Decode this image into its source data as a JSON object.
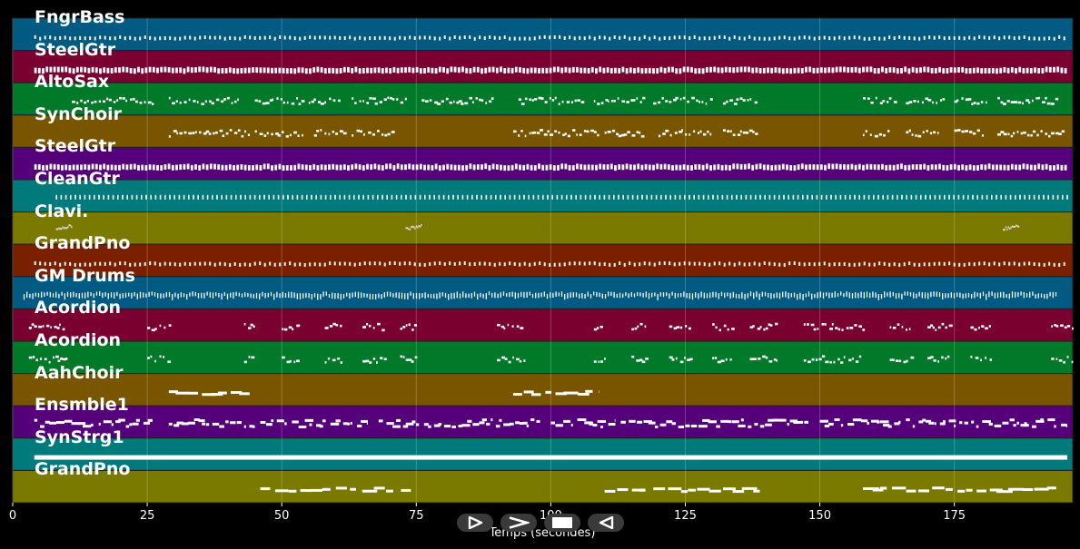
{
  "player": {
    "xlabel": "Temps (secondes)",
    "duration": 197,
    "xlim": [
      0,
      197
    ],
    "background": "#000000",
    "grid": true,
    "ticks": [
      0,
      25,
      50,
      75,
      100,
      125,
      150,
      175
    ],
    "tick_labels": [
      "0",
      "25",
      "50",
      "75",
      "100",
      "125",
      "150",
      "175"
    ]
  },
  "tracks": [
    {
      "name": "FngrBass",
      "color": "#005a82",
      "pattern": "dense-small",
      "segments": [
        [
          4,
          196
        ]
      ]
    },
    {
      "name": "SteelGtr",
      "color": "#7a0030",
      "pattern": "dense-bold",
      "segments": [
        [
          4,
          196
        ]
      ]
    },
    {
      "name": "AltoSax",
      "color": "#007a28",
      "pattern": "phrases",
      "segments": [
        [
          11,
          26
        ],
        [
          29,
          42
        ],
        [
          45,
          54
        ],
        [
          55,
          61
        ],
        [
          63,
          73
        ],
        [
          76,
          89
        ],
        [
          94,
          106
        ],
        [
          108,
          117
        ],
        [
          119,
          130
        ],
        [
          132,
          138
        ],
        [
          158,
          164
        ],
        [
          166,
          173
        ],
        [
          175,
          181
        ],
        [
          183,
          194
        ]
      ]
    },
    {
      "name": "SynChoir",
      "color": "#7a5500",
      "pattern": "phrases",
      "segments": [
        [
          29,
          44
        ],
        [
          45,
          54
        ],
        [
          56,
          62
        ],
        [
          63,
          71
        ],
        [
          93,
          109
        ],
        [
          110,
          117
        ],
        [
          120,
          130
        ],
        [
          132,
          138
        ],
        [
          158,
          163
        ],
        [
          166,
          172
        ],
        [
          175,
          181
        ],
        [
          183,
          195
        ]
      ]
    },
    {
      "name": "SteelGtr",
      "color": "#55007a",
      "pattern": "dense-bold",
      "segments": [
        [
          4,
          196
        ]
      ]
    },
    {
      "name": "CleanGtr",
      "color": "#007a7a",
      "pattern": "sparse-ticks",
      "segments": [
        [
          8,
          196
        ]
      ]
    },
    {
      "name": "Clavi.",
      "color": "#7a7a00",
      "pattern": "fills",
      "segments": [
        [
          8,
          11
        ],
        [
          73,
          76
        ],
        [
          184,
          187
        ]
      ]
    },
    {
      "name": "GrandPno",
      "color": "#7a2000",
      "pattern": "dense-small",
      "segments": [
        [
          4,
          196
        ]
      ]
    },
    {
      "name": "GM Drums",
      "color": "#005a82",
      "pattern": "drums",
      "segments": [
        [
          2,
          194
        ]
      ]
    },
    {
      "name": "Acordion",
      "color": "#7a0030",
      "pattern": "phrases",
      "segments": [
        [
          3,
          10
        ],
        [
          25,
          29
        ],
        [
          43,
          45
        ],
        [
          50,
          53
        ],
        [
          58,
          61
        ],
        [
          65,
          69
        ],
        [
          72,
          75
        ],
        [
          90,
          95
        ],
        [
          108,
          110
        ],
        [
          115,
          118
        ],
        [
          122,
          126
        ],
        [
          130,
          134
        ],
        [
          137,
          142
        ],
        [
          147,
          158
        ],
        [
          163,
          167
        ],
        [
          170,
          174
        ],
        [
          178,
          182
        ],
        [
          193,
          197
        ]
      ]
    },
    {
      "name": "Acordion",
      "color": "#007a28",
      "pattern": "phrases",
      "segments": [
        [
          3,
          10
        ],
        [
          25,
          29
        ],
        [
          43,
          45
        ],
        [
          50,
          53
        ],
        [
          58,
          61
        ],
        [
          65,
          69
        ],
        [
          72,
          75
        ],
        [
          90,
          95
        ],
        [
          108,
          110
        ],
        [
          115,
          118
        ],
        [
          122,
          126
        ],
        [
          130,
          134
        ],
        [
          137,
          142
        ],
        [
          147,
          158
        ],
        [
          163,
          167
        ],
        [
          170,
          174
        ],
        [
          178,
          182
        ],
        [
          193,
          197
        ]
      ]
    },
    {
      "name": "AahChoir",
      "color": "#7a5500",
      "pattern": "held",
      "segments": [
        [
          29,
          44
        ],
        [
          93,
          109
        ]
      ]
    },
    {
      "name": "Ensmble1",
      "color": "#55007a",
      "pattern": "strings",
      "segments": [
        [
          4,
          26
        ],
        [
          29,
          45
        ],
        [
          46,
          66
        ],
        [
          68,
          98
        ],
        [
          100,
          112
        ],
        [
          113,
          148
        ],
        [
          150,
          165
        ],
        [
          166,
          196
        ]
      ]
    },
    {
      "name": "SynStrg1",
      "color": "#007a7a",
      "pattern": "sustain",
      "segments": [
        [
          4,
          196
        ]
      ]
    },
    {
      "name": "GrandPno",
      "color": "#7a7a00",
      "pattern": "held",
      "segments": [
        [
          46,
          74
        ],
        [
          110,
          139
        ],
        [
          158,
          194
        ]
      ]
    }
  ],
  "controls": [
    {
      "name": "play",
      "icon": "play-outline-icon"
    },
    {
      "name": "next",
      "icon": "chevron-right-icon"
    },
    {
      "name": "stop",
      "icon": "stop-icon"
    },
    {
      "name": "back",
      "icon": "chevron-left-icon"
    }
  ]
}
